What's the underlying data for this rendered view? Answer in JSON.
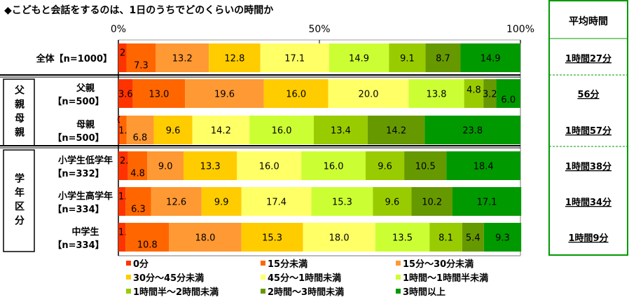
{
  "chart_data": {
    "type": "bar",
    "stacked": true,
    "orientation": "horizontal",
    "title": "◆こどもと会話をするのは、1日のうちでどのくらいの時間か",
    "x_ticks": [
      "0%",
      "50%",
      "100%"
    ],
    "xlim": [
      0,
      100
    ],
    "legend_position": "bottom",
    "series": [
      {
        "name": "0分",
        "color": "#FF3300"
      },
      {
        "name": "15分未満",
        "color": "#FF6600"
      },
      {
        "name": "15分～30分未満",
        "color": "#FF9933"
      },
      {
        "name": "30分～45分未満",
        "color": "#FFCC00"
      },
      {
        "name": "45分～1時間未満",
        "color": "#FFFF66"
      },
      {
        "name": "1時間～1時間半未満",
        "color": "#CCFF33"
      },
      {
        "name": "1時間半～2時間未満",
        "color": "#99CC00"
      },
      {
        "name": "2時間～3時間未満",
        "color": "#669900"
      },
      {
        "name": "3時間以上",
        "color": "#009900"
      }
    ],
    "groups": [
      {
        "label": "",
        "rows": [
          0
        ]
      },
      {
        "label": "父親母親",
        "rows": [
          1,
          2
        ]
      },
      {
        "label": "学年区分",
        "rows": [
          3,
          4,
          5
        ]
      }
    ],
    "categories": [
      {
        "name": "全体",
        "n": "【n=1000】",
        "values": [
          2.0,
          7.3,
          13.2,
          12.8,
          17.1,
          14.9,
          9.1,
          8.7,
          14.9
        ],
        "average": "1時間27分"
      },
      {
        "name": "父親",
        "n": "【n=500】",
        "values": [
          3.6,
          13.0,
          19.6,
          16.0,
          20.0,
          13.8,
          4.8,
          3.2,
          6.0
        ],
        "average": "56分"
      },
      {
        "name": "母親",
        "n": "【n=500】",
        "values": [
          0.4,
          1.6,
          6.8,
          9.6,
          14.2,
          16.0,
          13.4,
          14.2,
          23.8
        ],
        "average": "1時間57分"
      },
      {
        "name": "小学生低学年",
        "n": "【n=332】",
        "values": [
          2.4,
          4.8,
          9.0,
          13.3,
          16.0,
          16.0,
          9.6,
          10.5,
          18.4
        ],
        "average": "1時間38分"
      },
      {
        "name": "小学生高学年",
        "n": "【n=334】",
        "values": [
          1.8,
          6.3,
          12.6,
          9.9,
          17.4,
          15.3,
          9.6,
          10.2,
          17.1
        ],
        "average": "1時間34分"
      },
      {
        "name": "中学生",
        "n": "【n=334】",
        "values": [
          1.8,
          10.8,
          18.0,
          15.3,
          18.0,
          13.5,
          8.1,
          5.4,
          9.3
        ],
        "average": "1時間9分"
      }
    ],
    "average_header": "平均時間"
  }
}
